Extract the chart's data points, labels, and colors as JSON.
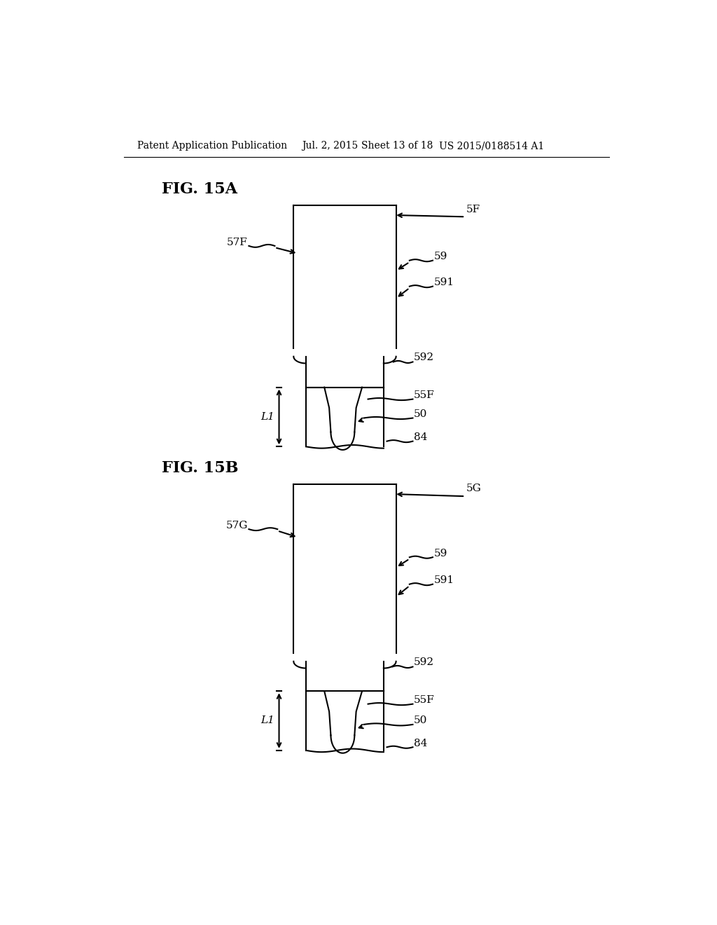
{
  "bg_color": "#ffffff",
  "header_left": "Patent Application Publication",
  "header_date": "Jul. 2, 2015",
  "header_sheet": "Sheet 13 of 18",
  "header_right": "US 2015/0188514 A1",
  "fig_15a_label": "FIG. 15A",
  "fig_15b_label": "FIG. 15B",
  "line_color": "#000000",
  "line_width": 1.5,
  "label_fontsize": 11,
  "header_fontsize": 10,
  "fig_label_fontsize": 16
}
